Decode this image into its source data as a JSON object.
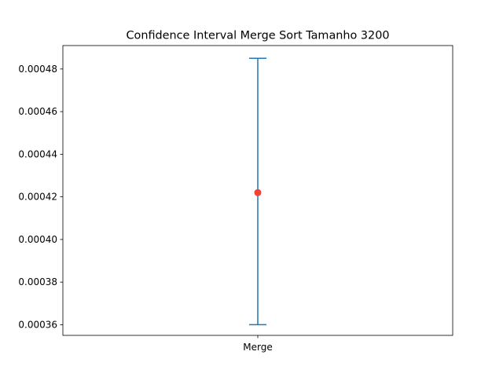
{
  "chart_data": {
    "type": "errorbar",
    "title": "Confidence Interval Merge Sort Tamanho 3200",
    "xlabel": "",
    "ylabel": "",
    "categories": [
      "Merge"
    ],
    "points": [
      {
        "category": "Merge",
        "mean": 0.000422,
        "lower": 0.00036,
        "upper": 0.000485
      }
    ],
    "yticks": [
      0.00036,
      0.00038,
      0.0004,
      0.00042,
      0.00044,
      0.00046,
      0.00048
    ],
    "ytick_labels": [
      "0.00036",
      "0.00038",
      "0.00040",
      "0.00042",
      "0.00044",
      "0.00046",
      "0.00048"
    ],
    "ylim": [
      0.000355,
      0.000491
    ],
    "grid": false,
    "colors": {
      "errorbar": "#1f77b4",
      "mean_marker": "#f44336",
      "frame": "#000000"
    }
  }
}
